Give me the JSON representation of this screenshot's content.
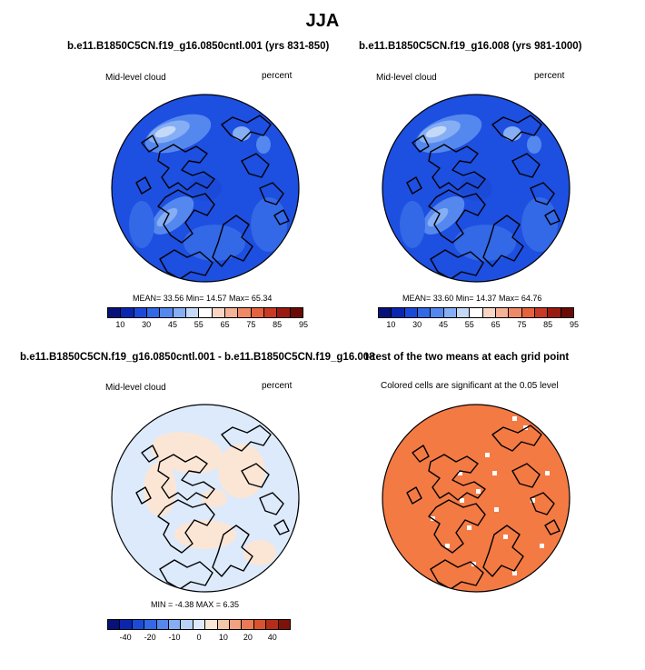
{
  "figure_title": "JJA",
  "colors": {
    "cloud_scale": [
      "#08107a",
      "#0a26b0",
      "#1c4ad8",
      "#3368e6",
      "#5588ee",
      "#86aef5",
      "#c4d8f8",
      "#ffffff",
      "#f9d6c4",
      "#f5b296",
      "#ef8a66",
      "#e5623f",
      "#c93a24",
      "#9b1a10",
      "#6a0a06"
    ],
    "diff_scale": [
      "#08107a",
      "#0a26b0",
      "#1c4ad8",
      "#3368e6",
      "#5588ee",
      "#86aef5",
      "#b8d2f7",
      "#dceafb",
      "#fbe6d6",
      "#f7c7ac",
      "#f2a27e",
      "#e97a55",
      "#d9532f",
      "#b32d18",
      "#7d1208"
    ],
    "sig_fill": "#f47a44",
    "cloud_base": "#1d4fe0"
  },
  "panels": {
    "tl": {
      "title": "b.e11.B1850C5CN.f19_g16.0850cntl.001 (yrs 831-850)",
      "left_label": "Mid-level cloud",
      "right_label": "percent",
      "stats": "MEAN=  33.56  Min=  14.57  Max=  65.34"
    },
    "tr": {
      "title": "b.e11.B1850C5CN.f19_g16.008 (yrs 981-1000)",
      "left_label": "Mid-level cloud",
      "right_label": "percent",
      "stats": "MEAN=  33.60  Min=  14.37  Max=  64.76"
    },
    "bl": {
      "title": "b.e11.B1850C5CN.f19_g16.0850cntl.001 - b.e11.B1850C5CN.f19_g16.008",
      "left_label": "Mid-level cloud",
      "right_label": "percent",
      "stats": "MIN =  -4.38 MAX =   6.35"
    },
    "br": {
      "title": "t-test of the two means at each grid point",
      "subtitle": "Colored cells are significant at the 0.05 level"
    }
  },
  "chart_data": [
    {
      "type": "heatmap",
      "title": "b.e11.B1850C5CN.f19_g16.0850cntl.001 (yrs 831-850)",
      "variable": "Mid-level cloud",
      "units": "percent",
      "mean": 33.56,
      "min": 14.57,
      "max": 65.34,
      "colorbar_ticks": [
        "10",
        "30",
        "45",
        "55",
        "65",
        "75",
        "85",
        "95"
      ]
    },
    {
      "type": "heatmap",
      "title": "b.e11.B1850C5CN.f19_g16.008 (yrs 981-1000)",
      "variable": "Mid-level cloud",
      "units": "percent",
      "mean": 33.6,
      "min": 14.37,
      "max": 64.76,
      "colorbar_ticks": [
        "10",
        "30",
        "45",
        "55",
        "65",
        "75",
        "85",
        "95"
      ]
    },
    {
      "type": "heatmap",
      "title": "b.e11.B1850C5CN.f19_g16.0850cntl.001 - b.e11.B1850C5CN.f19_g16.008",
      "variable": "Mid-level cloud",
      "units": "percent",
      "min": -4.38,
      "max": 6.35,
      "colorbar_ticks": [
        "-40",
        "-20",
        "-10",
        "0",
        "10",
        "20",
        "40"
      ]
    },
    {
      "type": "heatmap",
      "title": "t-test of the two means at each grid point",
      "subtitle": "Colored cells are significant at the 0.05 level"
    }
  ]
}
